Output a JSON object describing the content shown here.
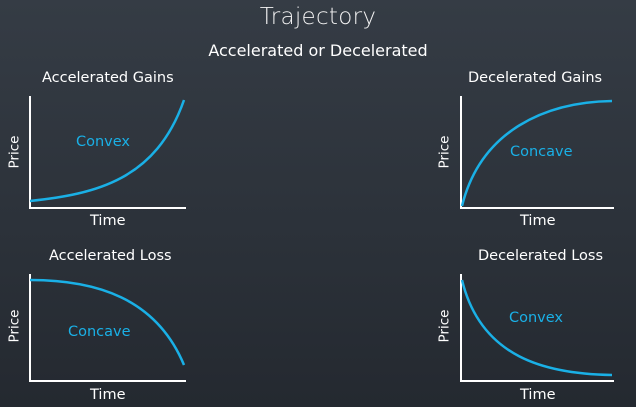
{
  "header": {
    "title": "Trajectory",
    "subtitle": "Accelerated or Decelerated"
  },
  "colors": {
    "curve": "#1ab0e6",
    "axis": "#ffffff",
    "background": "#2c323a"
  },
  "panels": [
    {
      "title": "Accelerated Gains",
      "curve_label": "Convex",
      "x_label": "Time",
      "y_label": "Price",
      "shape": "accelerated-gain"
    },
    {
      "title": "Decelerated Gains",
      "curve_label": "Concave",
      "x_label": "Time",
      "y_label": "Price",
      "shape": "decelerated-gain"
    },
    {
      "title": "Accelerated Loss",
      "curve_label": "Concave",
      "x_label": "Time",
      "y_label": "Price",
      "shape": "accelerated-loss"
    },
    {
      "title": "Decelerated Loss",
      "curve_label": "Convex",
      "x_label": "Time",
      "y_label": "Price",
      "shape": "decelerated-loss"
    }
  ]
}
